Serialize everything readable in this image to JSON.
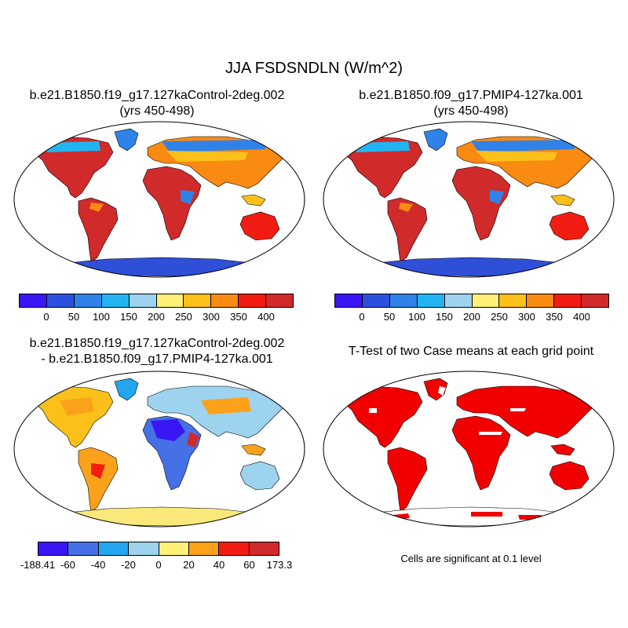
{
  "figure": {
    "title": "JJA FSDSNDLN (W/m^2)",
    "panels": [
      {
        "id": "control",
        "title_lines": [
          "b.e21.B1850.f19_g17.127kaControl-2deg.002",
          "(yrs 450-498)"
        ]
      },
      {
        "id": "pmip4",
        "title_lines": [
          "b.e21.B1850.f09_g17.PMIP4-127ka.001",
          "(yrs 450-498)"
        ]
      },
      {
        "id": "difference",
        "title_lines": [
          "b.e21.B1850.f19_g17.127kaControl-2deg.002",
          "- b.e21.B1850.f09_g17.PMIP4-127ka.001"
        ]
      },
      {
        "id": "ttest",
        "title_lines": [
          "T-Test of two Case means at each grid point"
        ]
      }
    ],
    "significance_note": "Cells are significant at 0.1 level"
  },
  "colorbars": {
    "field": {
      "colors": [
        "#3a16f5",
        "#2d4fe0",
        "#2f82e8",
        "#22b4f0",
        "#9dd3ef",
        "#fff07a",
        "#fcc01a",
        "#f98a12",
        "#f21d12",
        "#d02a2a"
      ],
      "labels": [
        "0",
        "50",
        "100",
        "150",
        "200",
        "250",
        "300",
        "350",
        "400"
      ]
    },
    "difference": {
      "colors": [
        "#3a16f5",
        "#4670e6",
        "#22a6f0",
        "#9dd3ef",
        "#fff07a",
        "#fca21a",
        "#f21d12",
        "#d02a2a"
      ],
      "labels": [
        "-188.41",
        "-60",
        "-40",
        "-20",
        "0",
        "20",
        "40",
        "60",
        "173.3"
      ]
    }
  },
  "colors": {
    "ocean": "#ffffff",
    "coastline": "#000000",
    "significant": "#f20000",
    "antarctica_field": "#2f4fd8",
    "antarctica_difference": "#fbe87a"
  }
}
